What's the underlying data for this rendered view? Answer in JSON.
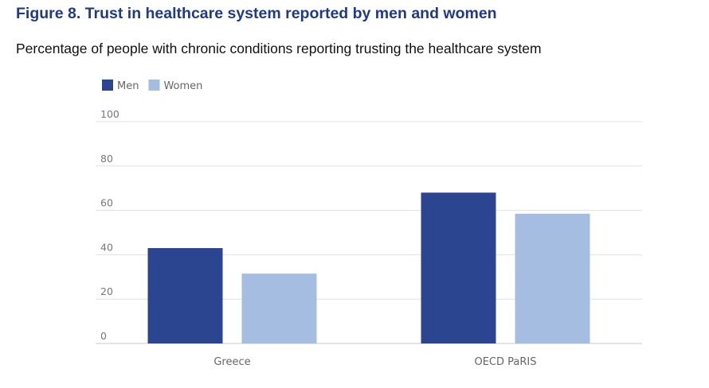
{
  "figure": {
    "title": "Figure 8. Trust in healthcare system reported by men and women",
    "subtitle": "Percentage of people with chronic conditions reporting trusting the healthcare system"
  },
  "chart_data": {
    "type": "bar",
    "title": "Figure 8. Trust in healthcare system reported by men and women",
    "subtitle": "Percentage of people with chronic conditions reporting trusting the healthcare system",
    "categories": [
      "Greece",
      "OECD PaRIS"
    ],
    "series": [
      {
        "name": "Men",
        "color": "#2b4591",
        "values": [
          43,
          68
        ]
      },
      {
        "name": "Women",
        "color": "#a5bde0",
        "values": [
          31.5,
          58.5
        ]
      }
    ],
    "yticks": [
      0,
      20,
      40,
      60,
      80,
      100
    ],
    "ylim": [
      0,
      100
    ],
    "xlabel": "",
    "ylabel": "",
    "grid": true,
    "legend": "top-left"
  }
}
